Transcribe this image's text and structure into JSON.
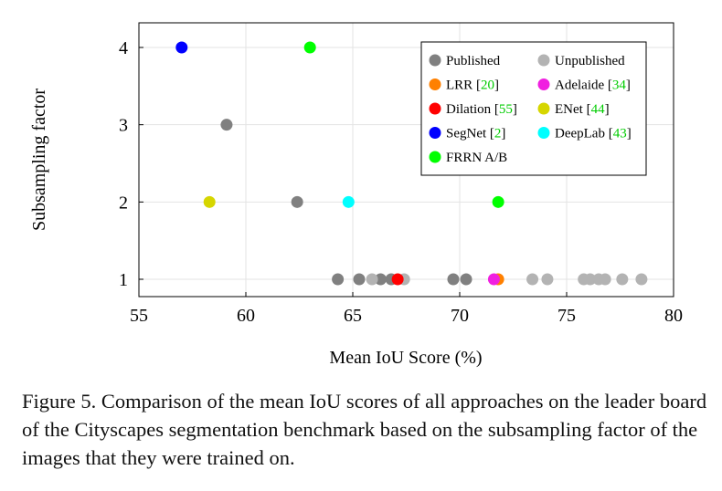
{
  "chart_data": {
    "type": "scatter",
    "xlabel": "Mean IoU Score (%)",
    "ylabel": "Subsampling factor",
    "xlim": [
      55,
      80
    ],
    "ylim": [
      0.7,
      4.3
    ],
    "xticks": [
      55,
      60,
      65,
      70,
      75,
      80
    ],
    "yticks": [
      1,
      2,
      3,
      4
    ],
    "grid": true,
    "legend_position": "top-right",
    "series": [
      {
        "name": "Published",
        "color": "#808080",
        "points": [
          [
            59.1,
            3
          ],
          [
            62.4,
            2
          ],
          [
            64.3,
            1
          ],
          [
            65.3,
            1
          ],
          [
            66.3,
            1
          ],
          [
            66.8,
            1
          ],
          [
            69.7,
            1
          ],
          [
            70.3,
            1
          ]
        ]
      },
      {
        "name": "Unpublished",
        "color": "#b3b3b3",
        "points": [
          [
            65.9,
            1
          ],
          [
            67.4,
            1
          ],
          [
            73.4,
            1
          ],
          [
            74.1,
            1
          ],
          [
            75.8,
            1
          ],
          [
            76.1,
            1
          ],
          [
            76.5,
            1
          ],
          [
            76.8,
            1
          ],
          [
            77.6,
            1
          ],
          [
            78.5,
            1
          ]
        ]
      },
      {
        "name": "LRR",
        "ref": "20",
        "color": "#ff8000",
        "points": [
          [
            71.8,
            1
          ]
        ]
      },
      {
        "name": "Adelaide",
        "ref": "34",
        "color": "#f020e0",
        "points": [
          [
            71.6,
            1
          ]
        ]
      },
      {
        "name": "Dilation",
        "ref": "55",
        "color": "#ff0000",
        "points": [
          [
            67.1,
            1
          ]
        ]
      },
      {
        "name": "ENet",
        "ref": "44",
        "color": "#d6d600",
        "points": [
          [
            58.3,
            2
          ]
        ]
      },
      {
        "name": "SegNet",
        "ref": "2",
        "color": "#0000ff",
        "points": [
          [
            57.0,
            4
          ]
        ]
      },
      {
        "name": "DeepLab",
        "ref": "43",
        "color": "#00ffff",
        "points": [
          [
            64.8,
            2
          ]
        ]
      },
      {
        "name": "FRRN A/B",
        "color": "#00ff00",
        "points": [
          [
            63.0,
            4
          ],
          [
            71.8,
            2
          ]
        ]
      }
    ]
  },
  "caption": "Figure 5. Comparison of the mean IoU scores of all approaches on the leader board of the Cityscapes segmentation benchmark based on the subsampling factor of the images that they were trained on.",
  "ref_color": "#00cc00"
}
